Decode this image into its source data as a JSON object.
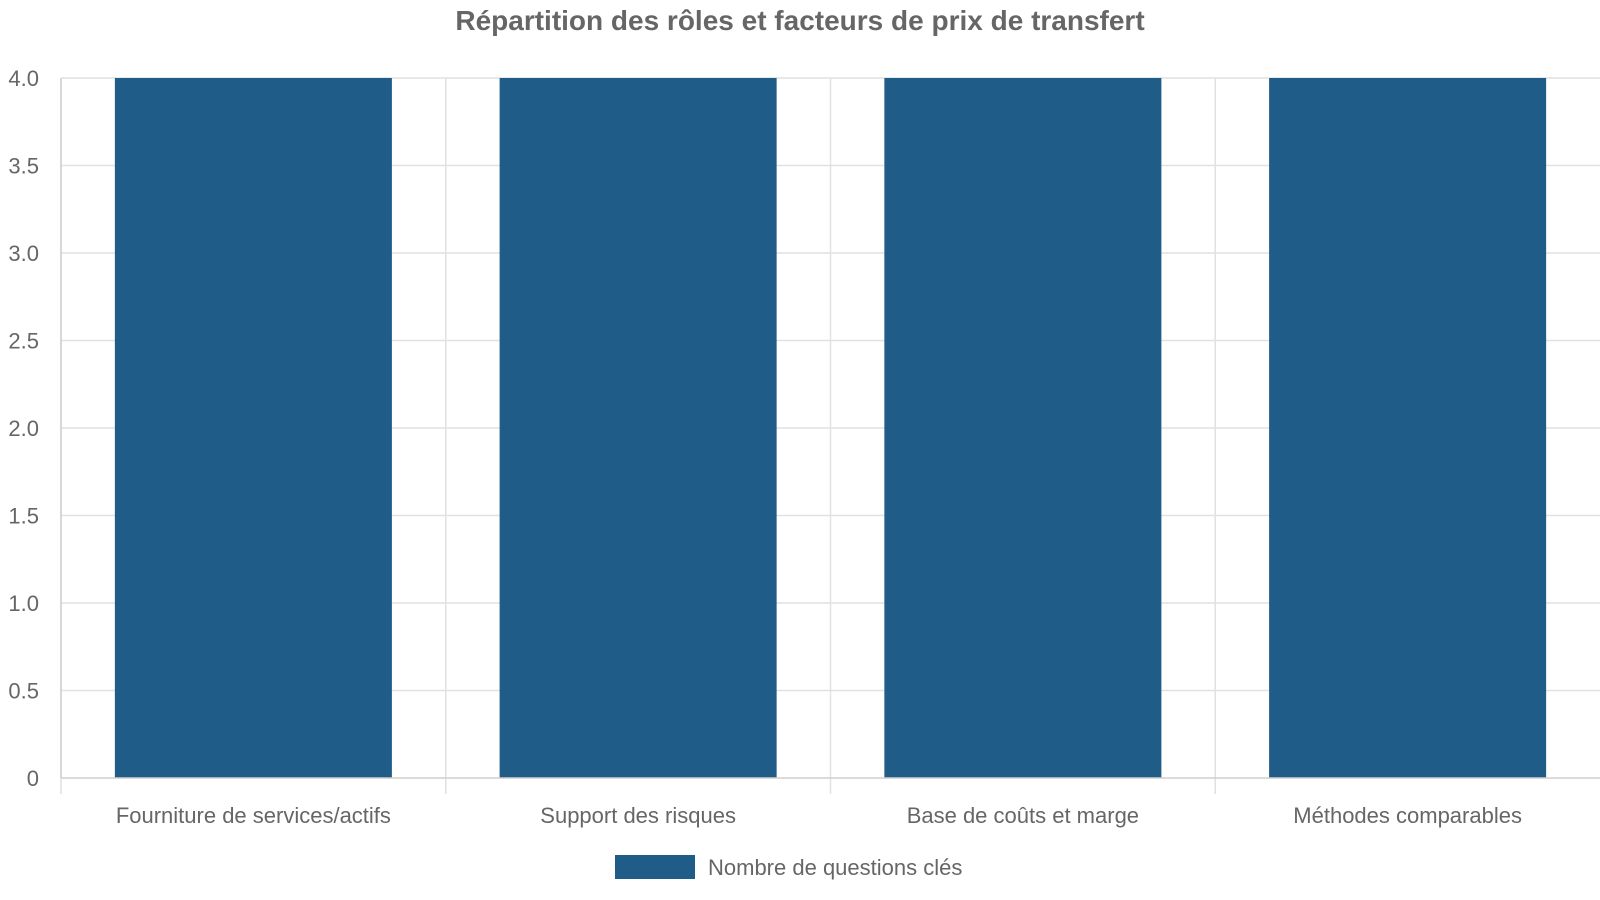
{
  "chart_data": {
    "type": "bar",
    "title": "Répartition des rôles et facteurs de prix de transfert",
    "categories": [
      "Fourniture de services/actifs",
      "Support des risques",
      "Base de coûts et marge",
      "Méthodes comparables"
    ],
    "series": [
      {
        "name": "Nombre de questions clés",
        "values": [
          4,
          4,
          4,
          4
        ],
        "color": "#1f5c87"
      }
    ],
    "yticks": [
      "0",
      "0.5",
      "1.0",
      "1.5",
      "2.0",
      "2.5",
      "3.0",
      "3.5",
      "4.0"
    ],
    "ylim": [
      0,
      4
    ],
    "grid": true,
    "legend_position": "bottom-center"
  }
}
